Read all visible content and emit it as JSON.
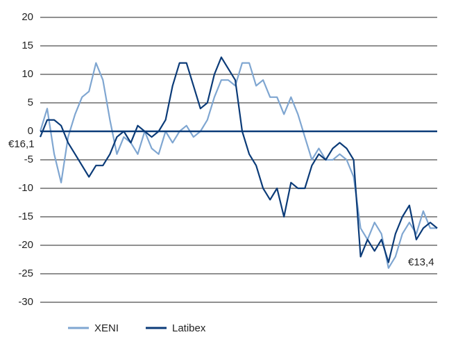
{
  "chart_data": {
    "type": "line",
    "ylim": [
      -30,
      20
    ],
    "yticks": [
      -30,
      -25,
      -20,
      -15,
      -10,
      -5,
      0,
      5,
      10,
      15,
      20
    ],
    "grid": true,
    "annotations": [
      "€16,1",
      "€13,4"
    ],
    "series": [
      {
        "name": "XENI",
        "color": "#7fa6d1",
        "values": [
          0,
          4,
          -4,
          -9,
          -1,
          3,
          6,
          7,
          12,
          9,
          2,
          -4,
          -1,
          -2,
          -4,
          0,
          -3,
          -4,
          0,
          -2,
          0,
          1,
          -1,
          0,
          2,
          6,
          9,
          9,
          8,
          12,
          12,
          8,
          9,
          6,
          6,
          3,
          6,
          3,
          -1,
          -5,
          -3,
          -5,
          -5,
          -4,
          -5,
          -8,
          -17,
          -19,
          -16,
          -18,
          -24,
          -22,
          -18,
          -16,
          -18,
          -14,
          -17,
          -17
        ]
      },
      {
        "name": "Latibex",
        "color": "#0b3b78",
        "values": [
          -1,
          2,
          2,
          1,
          -2,
          -4,
          -6,
          -8,
          -6,
          -6,
          -4,
          -1,
          0,
          -2,
          1,
          0,
          -1,
          0,
          2,
          8,
          12,
          12,
          8,
          4,
          5,
          10,
          13,
          11,
          9,
          0,
          -4,
          -6,
          -10,
          -12,
          -10,
          -15,
          -9,
          -10,
          -10,
          -6,
          -4,
          -5,
          -3,
          -2,
          -3,
          -5,
          -22,
          -19,
          -21,
          -19,
          -23,
          -18,
          -15,
          -13,
          -19,
          -17,
          -16,
          -17
        ]
      }
    ],
    "legend": "bottom"
  }
}
